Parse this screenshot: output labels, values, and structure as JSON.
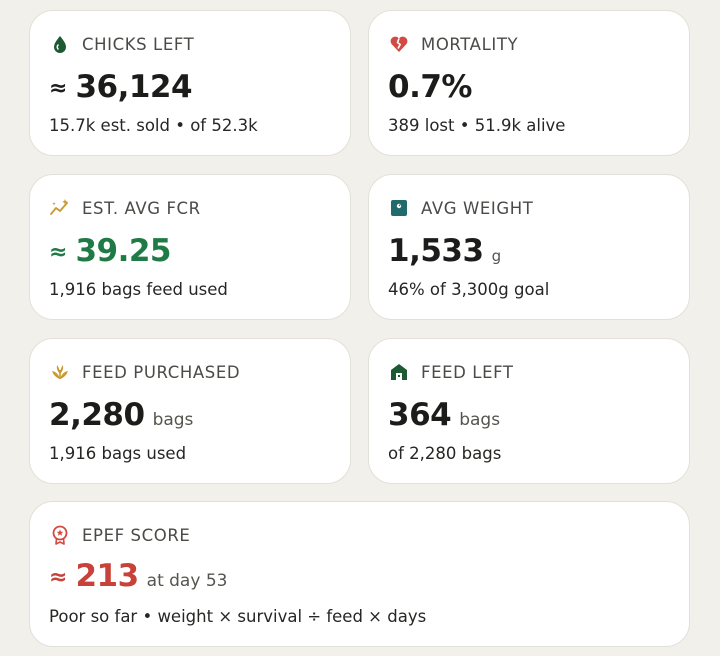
{
  "cards": {
    "chicks_left": {
      "label": "CHICKS LEFT",
      "icon": "drop-icon",
      "approx": "≈",
      "value": "36,124",
      "sub": "15.7k est. sold • of 52.3k",
      "icon_color": "#1d5a34"
    },
    "mortality": {
      "label": "MORTALITY",
      "icon": "broken-heart-icon",
      "value": "0.7%",
      "sub": "389 lost • 51.9k alive",
      "icon_color": "#d24a44"
    },
    "est_avg_fcr": {
      "label": "EST. AVG FCR",
      "icon": "trend-sparkle-icon",
      "approx": "≈",
      "value": "39.25",
      "sub": "1,916 bags feed used",
      "value_color": "#1f7a45",
      "icon_color": "#c99a2e"
    },
    "avg_weight": {
      "label": "AVG WEIGHT",
      "icon": "scale-icon",
      "value": "1,533",
      "unit": "g",
      "sub": "46% of 3,300g goal",
      "icon_color": "#1f6b6b"
    },
    "feed_purchased": {
      "label": "FEED PURCHASED",
      "icon": "grain-icon",
      "value": "2,280",
      "unit": "bags",
      "sub": "1,916 bags used",
      "icon_color": "#c99a2e"
    },
    "feed_left": {
      "label": "FEED LEFT",
      "icon": "barn-icon",
      "value": "364",
      "unit": "bags",
      "sub": "of 2,280 bags",
      "icon_color": "#1d5a34"
    },
    "epef_score": {
      "label": "EPEF SCORE",
      "icon": "award-badge-icon",
      "approx": "≈",
      "value": "213",
      "unit": "at day 53",
      "sub": "Poor so far • weight × survival ÷ feed × days",
      "value_color": "#c8423a",
      "icon_color": "#d24a44"
    }
  }
}
